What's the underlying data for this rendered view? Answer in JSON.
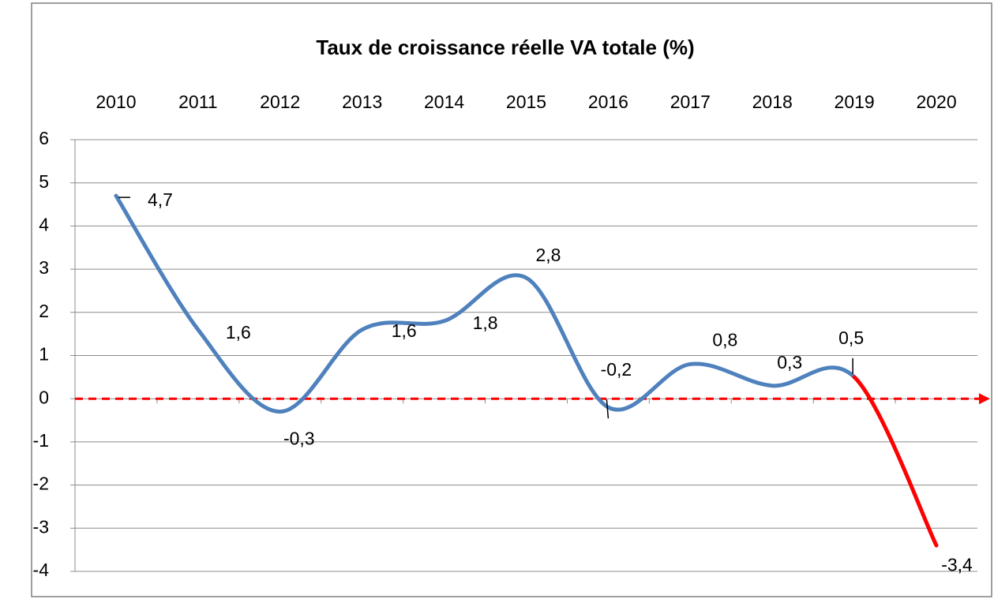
{
  "chart_data": {
    "type": "line",
    "title": "Taux de croissance réelle VA  totale (%)",
    "categories": [
      "2010",
      "2011",
      "2012",
      "2013",
      "2014",
      "2015",
      "2016",
      "2017",
      "2018",
      "2019",
      "2020"
    ],
    "values": [
      4.7,
      1.6,
      -0.3,
      1.6,
      1.8,
      2.8,
      -0.2,
      0.8,
      0.3,
      0.5,
      -3.4
    ],
    "value_labels": [
      "4,7",
      "1,6",
      "-0,3",
      "1,6",
      "1,8",
      "2,8",
      "-0,2",
      "0,8",
      "0,3",
      "0,5",
      "-3,4"
    ],
    "color": "#4f81bd",
    "last_segment_color": "#ff0000",
    "zero_line_color": "#ff0000",
    "ylim": [
      -4,
      6
    ],
    "yticks": [
      -4,
      -3,
      -2,
      -1,
      0,
      1,
      2,
      3,
      4,
      5,
      6
    ],
    "grid": true
  }
}
